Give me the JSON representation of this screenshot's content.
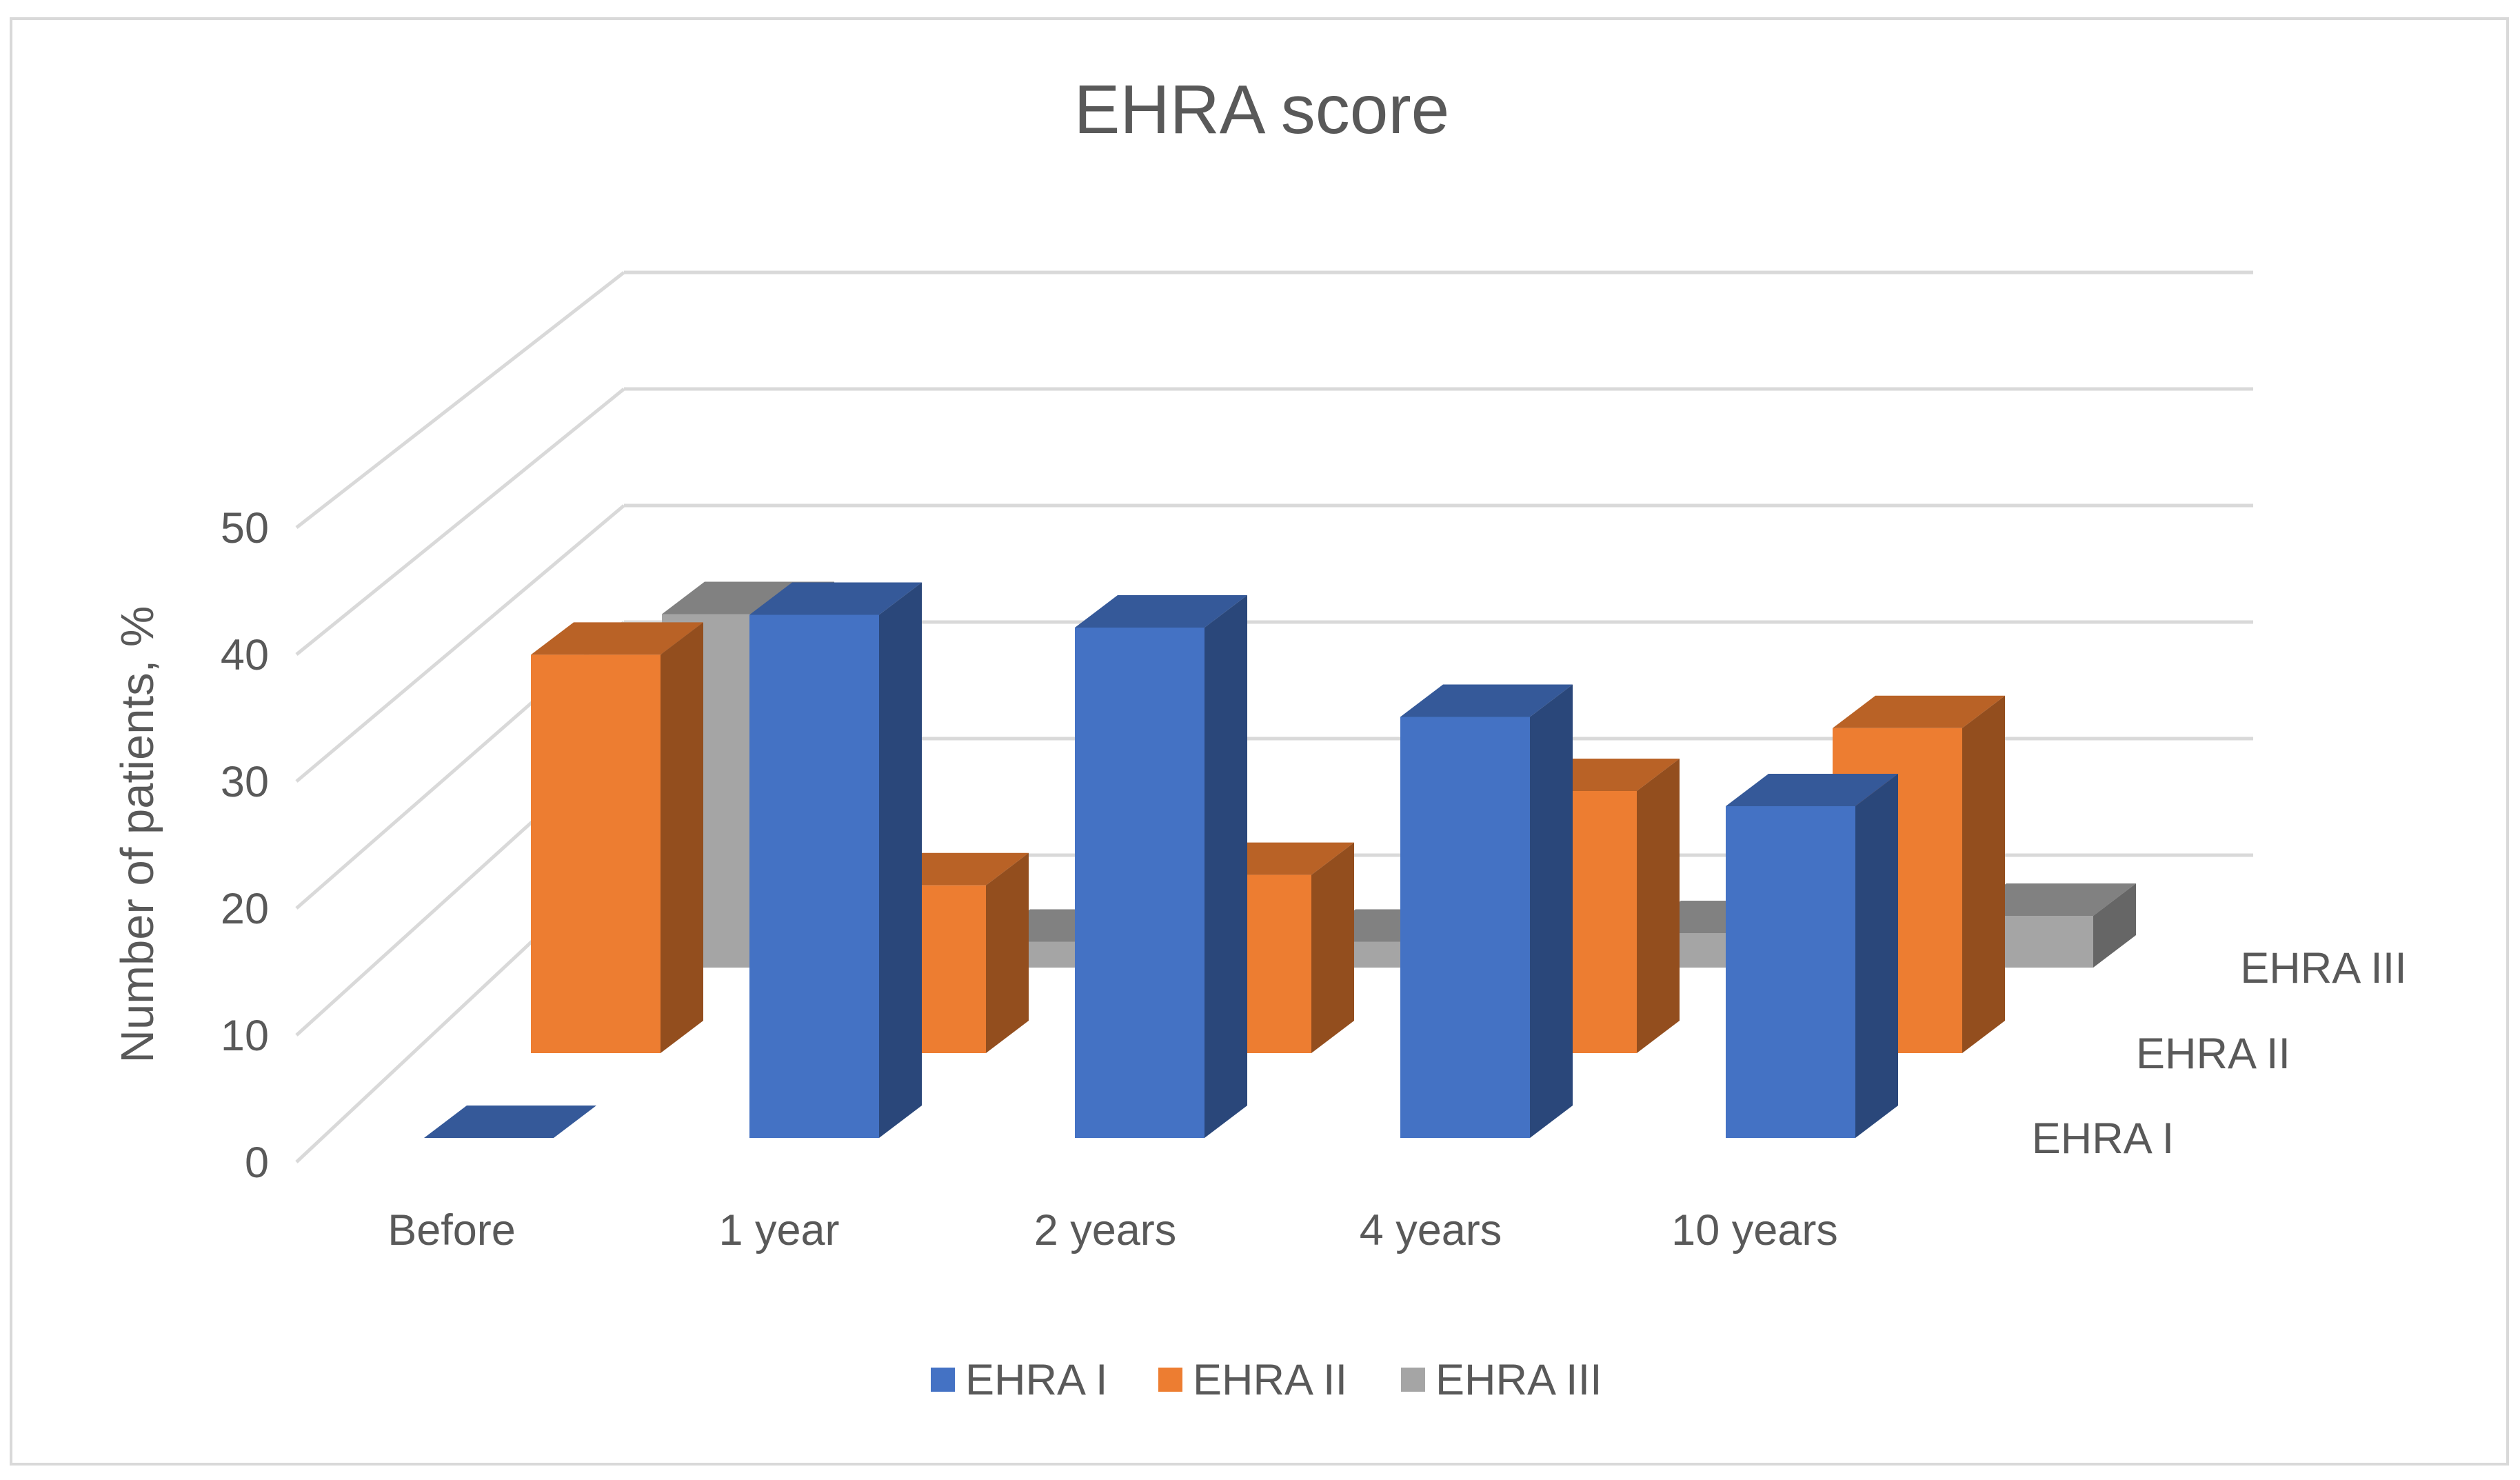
{
  "chart_data": {
    "type": "bar",
    "subtype": "3d-clustered-column",
    "title": "EHRA score",
    "ylabel": "Number of patients, %",
    "xlabel": "",
    "categories": [
      "Before",
      "1 year",
      "2 years",
      "4 years",
      "10 years"
    ],
    "series": [
      {
        "name": "EHRA I",
        "values": [
          0,
          41,
          40,
          33,
          26
        ],
        "color": "#4472c4"
      },
      {
        "name": "EHRA II",
        "values": [
          38,
          16,
          17,
          25,
          31
        ],
        "color": "#ed7d31"
      },
      {
        "name": "EHRA III",
        "values": [
          41,
          3,
          3,
          4,
          6
        ],
        "color": "#a5a5a5"
      }
    ],
    "yticks": [
      0,
      10,
      20,
      30,
      40,
      50
    ],
    "ylim": [
      0,
      50
    ],
    "depth_labels": [
      "EHRA I",
      "EHRA II",
      "EHRA III"
    ],
    "grid": true,
    "legend_position": "bottom"
  }
}
